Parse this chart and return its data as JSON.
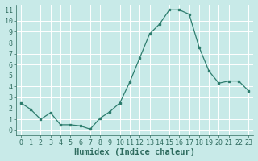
{
  "x": [
    0,
    1,
    2,
    3,
    4,
    5,
    6,
    7,
    8,
    9,
    10,
    11,
    12,
    13,
    14,
    15,
    16,
    17,
    18,
    19,
    20,
    21,
    22,
    23
  ],
  "y": [
    2.5,
    1.9,
    1.0,
    1.6,
    0.5,
    0.5,
    0.4,
    0.1,
    1.1,
    1.7,
    2.5,
    4.4,
    6.6,
    8.8,
    9.7,
    11.0,
    11.0,
    10.6,
    7.6,
    5.4,
    4.3,
    4.5,
    4.5,
    3.6
  ],
  "xlabel": "Humidex (Indice chaleur)",
  "line_color": "#2e7d6e",
  "marker_color": "#2e7d6e",
  "bg_color": "#c8eae8",
  "grid_color": "#a8d4d0",
  "text_color": "#2e6b5e",
  "xlim": [
    -0.5,
    23.5
  ],
  "ylim": [
    -0.5,
    11.5
  ],
  "xticks": [
    0,
    1,
    2,
    3,
    4,
    5,
    6,
    7,
    8,
    9,
    10,
    11,
    12,
    13,
    14,
    15,
    16,
    17,
    18,
    19,
    20,
    21,
    22,
    23
  ],
  "yticks": [
    0,
    1,
    2,
    3,
    4,
    5,
    6,
    7,
    8,
    9,
    10,
    11
  ],
  "tick_fontsize": 6,
  "xlabel_fontsize": 7.5
}
